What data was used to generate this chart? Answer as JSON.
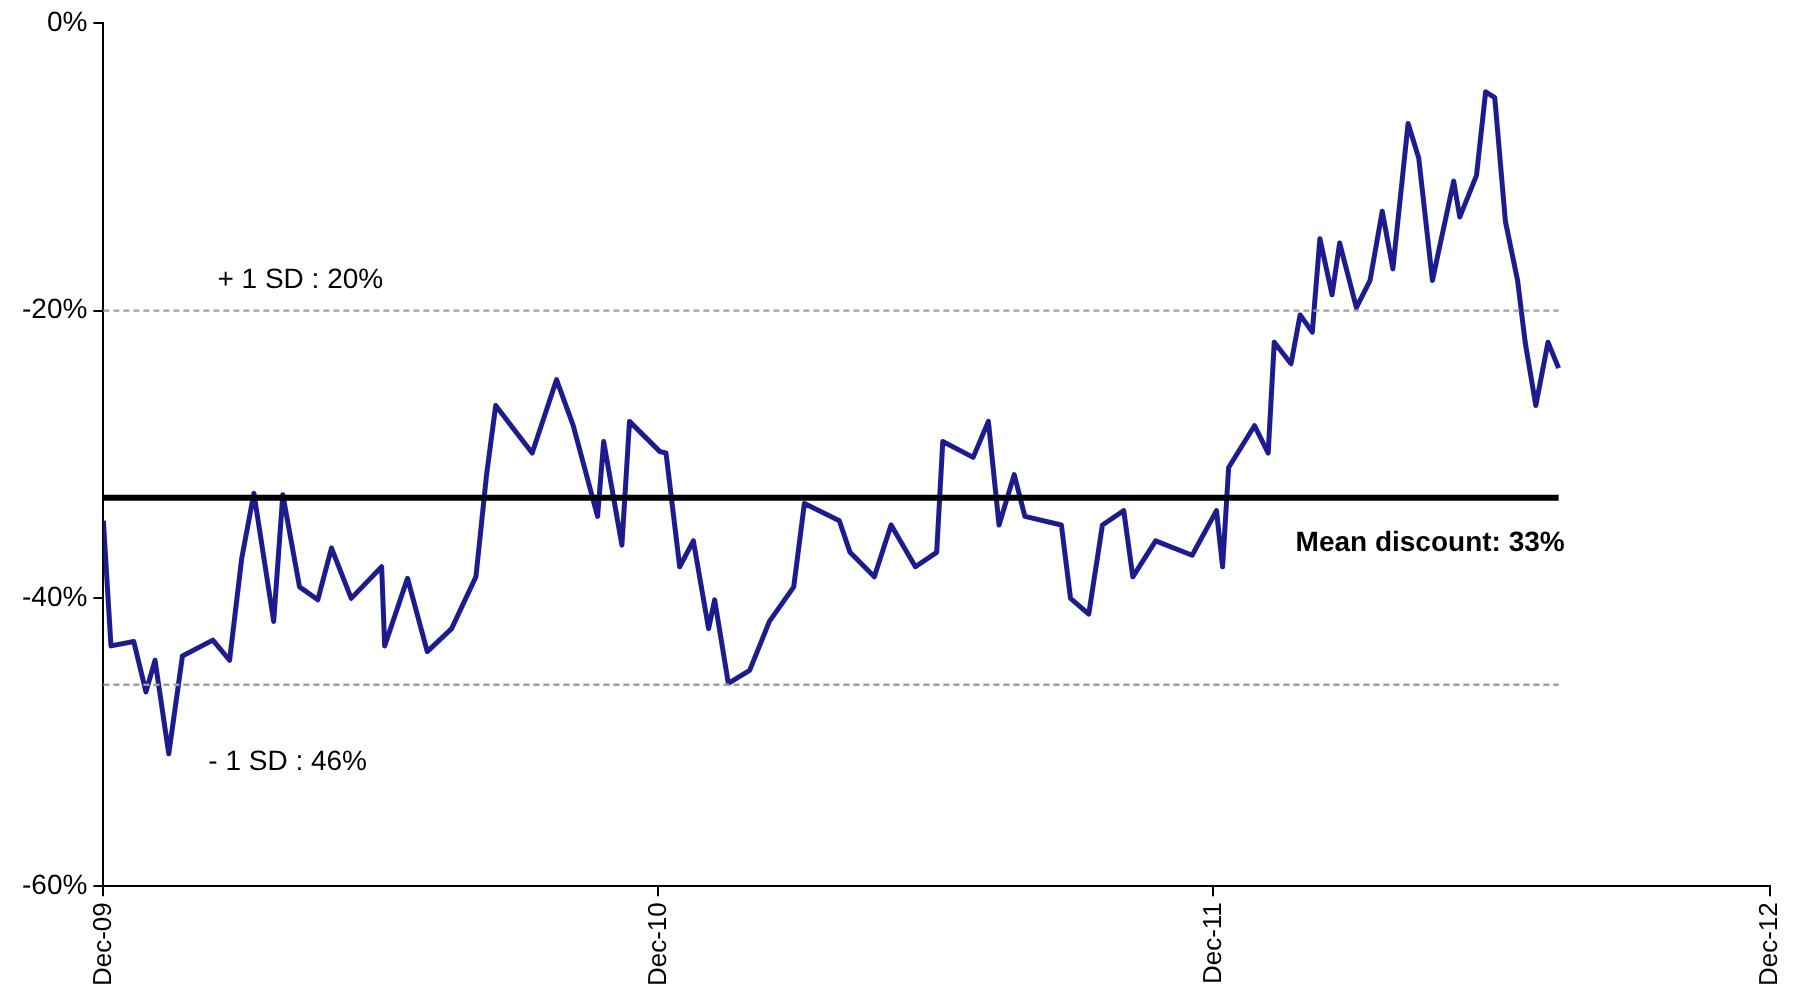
{
  "chart_data": {
    "type": "line",
    "x": [
      "2009-12-01",
      "2009-12-06",
      "2009-12-21",
      "2009-12-29",
      "2010-01-04",
      "2010-01-13",
      "2010-01-22",
      "2010-02-11",
      "2010-02-22",
      "2010-03-02",
      "2010-03-10",
      "2010-03-23",
      "2010-03-29",
      "2010-04-09",
      "2010-04-21",
      "2010-04-30",
      "2010-05-13",
      "2010-06-02",
      "2010-06-04",
      "2010-06-19",
      "2010-07-02",
      "2010-07-18",
      "2010-08-03",
      "2010-08-10",
      "2010-08-16",
      "2010-09-09",
      "2010-09-25",
      "2010-10-06",
      "2010-10-22",
      "2010-10-26",
      "2010-11-07",
      "2010-11-12",
      "2010-12-02",
      "2010-12-06",
      "2010-12-15",
      "2010-12-24",
      "2011-01-03",
      "2011-01-07",
      "2011-01-16",
      "2011-01-30",
      "2011-02-12",
      "2011-02-28",
      "2011-03-07",
      "2011-03-30",
      "2011-04-06",
      "2011-04-22",
      "2011-05-03",
      "2011-05-19",
      "2011-06-02",
      "2011-06-06",
      "2011-06-26",
      "2011-07-06",
      "2011-07-13",
      "2011-07-23",
      "2011-07-30",
      "2011-08-23",
      "2011-08-29",
      "2011-09-10",
      "2011-09-19",
      "2011-10-03",
      "2011-10-09",
      "2011-10-24",
      "2011-11-17",
      "2011-12-03",
      "2011-12-07",
      "2011-12-11",
      "2011-12-28",
      "2012-01-06",
      "2012-01-10",
      "2012-01-21",
      "2012-01-27",
      "2012-02-04",
      "2012-02-09",
      "2012-02-17",
      "2012-02-22",
      "2012-03-04",
      "2012-03-13",
      "2012-03-21",
      "2012-03-28",
      "2012-04-07",
      "2012-04-14",
      "2012-04-23",
      "2012-05-07",
      "2012-05-11",
      "2012-05-22",
      "2012-05-28",
      "2012-06-03",
      "2012-06-10",
      "2012-06-18",
      "2012-06-23",
      "2012-06-30",
      "2012-07-08",
      "2012-07-15"
    ],
    "series": [
      {
        "color": "#1c1c8e",
        "values": [
          -34.6,
          -43.3,
          -43,
          -46.5,
          -44.3,
          -50.8,
          -44,
          -42.9,
          -44.3,
          -37.2,
          -32.7,
          -41.6,
          -32.8,
          -39.2,
          -40.1,
          -36.5,
          -40,
          -37.8,
          -43.3,
          -38.6,
          -43.7,
          -42.1,
          -38.5,
          -31.4,
          -26.6,
          -29.9,
          -24.8,
          -28,
          -34.3,
          -29.1,
          -36.3,
          -27.7,
          -29.8,
          -29.9,
          -37.8,
          -36,
          -42.1,
          -40.1,
          -45.9,
          -45,
          -41.6,
          -39.2,
          -33.4,
          -34.6,
          -36.8,
          -38.5,
          -34.9,
          -37.8,
          -36.8,
          -29.1,
          -30.2,
          -27.7,
          -34.9,
          -31.4,
          -34.3,
          -34.9,
          -40,
          -41.1,
          -34.9,
          -33.9,
          -38.5,
          -36,
          -37,
          -33.9,
          -37.8,
          -30.9,
          -28,
          -29.9,
          -22.2,
          -23.7,
          -20.3,
          -21.5,
          -15,
          -18.9,
          -15.3,
          -19.8,
          -17.9,
          -13.1,
          -17.1,
          -7,
          -9.4,
          -17.9,
          -11,
          -13.5,
          -10.6,
          -4.8,
          -5.2,
          -13.8,
          -17.9,
          -22.2,
          -26.6,
          -22.2,
          -24
        ]
      }
    ],
    "xlim": [
      "2009-12",
      "2012-12"
    ],
    "xticks": [
      {
        "value": "2009-12",
        "label": "Dec-09"
      },
      {
        "value": "2010-12",
        "label": "Dec-10"
      },
      {
        "value": "2011-12",
        "label": "Dec-11"
      },
      {
        "value": "2012-12",
        "label": "Dec-12"
      }
    ],
    "ylim": [
      -60,
      0
    ],
    "yticks": [
      {
        "value": 0,
        "label": "0%"
      },
      {
        "value": -20,
        "label": "-20%"
      },
      {
        "value": -40,
        "label": "-40%"
      },
      {
        "value": -60,
        "label": "-60%"
      }
    ],
    "ref_lines": [
      {
        "axis": "y",
        "value": -20,
        "color": "#a0a0a0",
        "line_style": "dashed"
      },
      {
        "axis": "y",
        "value": -33,
        "color": "#000000",
        "line_style": "solid"
      },
      {
        "axis": "y",
        "value": -46,
        "color": "#a0a0a0",
        "line_style": "dashed"
      }
    ],
    "annotations": [
      {
        "text": "+ 1 SD : 20%",
        "x": "2010-02-14",
        "y": -20
      },
      {
        "text": "Mean discount: 33%",
        "x": "2012-01-24",
        "y": -33
      },
      {
        "text": "- 1 SD : 46%",
        "x": "2010-02-08",
        "y": -46
      }
    ],
    "grid": false,
    "legend": false,
    "marker": "none",
    "line_style": "solid"
  }
}
